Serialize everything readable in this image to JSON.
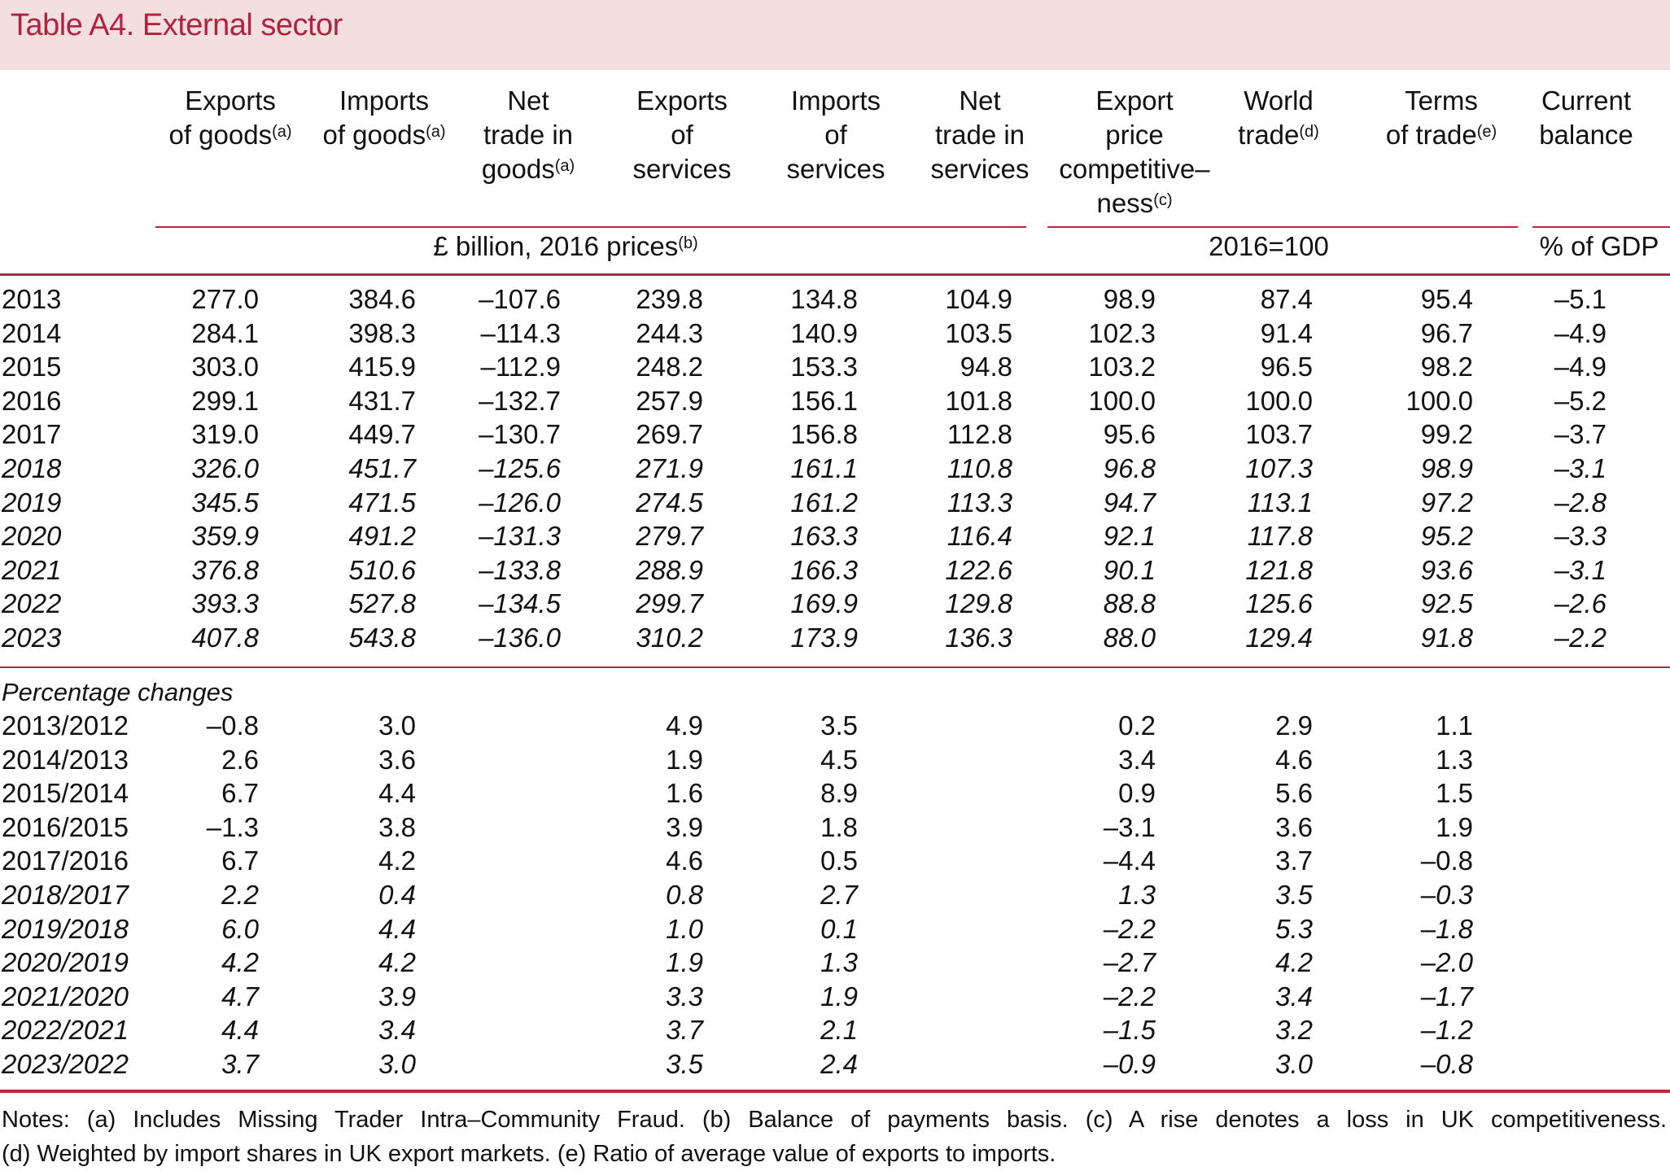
{
  "title": "Table A4. External sector",
  "colors": {
    "accent": "#b5283f",
    "title_bg": "#f3dfdf"
  },
  "columns": [
    {
      "lines": [
        "Exports",
        "of goods"
      ],
      "sup": "(a)"
    },
    {
      "lines": [
        "Imports",
        "of goods"
      ],
      "sup": "(a)"
    },
    {
      "lines": [
        "Net",
        "trade in",
        "goods"
      ],
      "sup": "(a)"
    },
    {
      "lines": [
        "Exports",
        "of",
        "services"
      ],
      "sup": ""
    },
    {
      "lines": [
        "Imports",
        "of",
        "services"
      ],
      "sup": ""
    },
    {
      "lines": [
        "Net",
        "trade in",
        "services"
      ],
      "sup": ""
    },
    {
      "lines": [
        "Export",
        "price",
        "competitive–",
        "ness"
      ],
      "sup": "(c)"
    },
    {
      "lines": [
        "World",
        "trade"
      ],
      "sup": "(d)"
    },
    {
      "lines": [
        "Terms",
        "of trade"
      ],
      "sup": "(e)"
    },
    {
      "lines": [
        "Current",
        "balance"
      ],
      "sup": ""
    }
  ],
  "units": [
    {
      "label": "£ billion, 2016 prices",
      "sup": "(b)"
    },
    {
      "label": "2016=100",
      "sup": ""
    },
    {
      "label": "% of GDP",
      "sup": ""
    }
  ],
  "levels": [
    {
      "year": "2013",
      "projection": false,
      "values": [
        "277.0",
        "384.6",
        "–107.6",
        "239.8",
        "134.8",
        "104.9",
        "98.9",
        "87.4",
        "95.4",
        "–5.1"
      ]
    },
    {
      "year": "2014",
      "projection": false,
      "values": [
        "284.1",
        "398.3",
        "–114.3",
        "244.3",
        "140.9",
        "103.5",
        "102.3",
        "91.4",
        "96.7",
        "–4.9"
      ]
    },
    {
      "year": "2015",
      "projection": false,
      "values": [
        "303.0",
        "415.9",
        "–112.9",
        "248.2",
        "153.3",
        "94.8",
        "103.2",
        "96.5",
        "98.2",
        "–4.9"
      ]
    },
    {
      "year": "2016",
      "projection": false,
      "values": [
        "299.1",
        "431.7",
        "–132.7",
        "257.9",
        "156.1",
        "101.8",
        "100.0",
        "100.0",
        "100.0",
        "–5.2"
      ]
    },
    {
      "year": "2017",
      "projection": false,
      "values": [
        "319.0",
        "449.7",
        "–130.7",
        "269.7",
        "156.8",
        "112.8",
        "95.6",
        "103.7",
        "99.2",
        "–3.7"
      ]
    },
    {
      "year": "2018",
      "projection": true,
      "values": [
        "326.0",
        "451.7",
        "–125.6",
        "271.9",
        "161.1",
        "110.8",
        "96.8",
        "107.3",
        "98.9",
        "–3.1"
      ]
    },
    {
      "year": "2019",
      "projection": true,
      "values": [
        "345.5",
        "471.5",
        "–126.0",
        "274.5",
        "161.2",
        "113.3",
        "94.7",
        "113.1",
        "97.2",
        "–2.8"
      ]
    },
    {
      "year": "2020",
      "projection": true,
      "values": [
        "359.9",
        "491.2",
        "–131.3",
        "279.7",
        "163.3",
        "116.4",
        "92.1",
        "117.8",
        "95.2",
        "–3.3"
      ]
    },
    {
      "year": "2021",
      "projection": true,
      "values": [
        "376.8",
        "510.6",
        "–133.8",
        "288.9",
        "166.3",
        "122.6",
        "90.1",
        "121.8",
        "93.6",
        "–3.1"
      ]
    },
    {
      "year": "2022",
      "projection": true,
      "values": [
        "393.3",
        "527.8",
        "–134.5",
        "299.7",
        "169.9",
        "129.8",
        "88.8",
        "125.6",
        "92.5",
        "–2.6"
      ]
    },
    {
      "year": "2023",
      "projection": true,
      "values": [
        "407.8",
        "543.8",
        "–136.0",
        "310.2",
        "173.9",
        "136.3",
        "88.0",
        "129.4",
        "91.8",
        "–2.2"
      ]
    }
  ],
  "pct_label": "Percentage changes",
  "pct": [
    {
      "year": "2013/2012",
      "projection": false,
      "values": [
        "–0.8",
        "3.0",
        "",
        "4.9",
        "3.5",
        "",
        "0.2",
        "2.9",
        "1.1",
        ""
      ]
    },
    {
      "year": "2014/2013",
      "projection": false,
      "values": [
        "2.6",
        "3.6",
        "",
        "1.9",
        "4.5",
        "",
        "3.4",
        "4.6",
        "1.3",
        ""
      ]
    },
    {
      "year": "2015/2014",
      "projection": false,
      "values": [
        "6.7",
        "4.4",
        "",
        "1.6",
        "8.9",
        "",
        "0.9",
        "5.6",
        "1.5",
        ""
      ]
    },
    {
      "year": "2016/2015",
      "projection": false,
      "values": [
        "–1.3",
        "3.8",
        "",
        "3.9",
        "1.8",
        "",
        "–3.1",
        "3.6",
        "1.9",
        ""
      ]
    },
    {
      "year": "2017/2016",
      "projection": false,
      "values": [
        "6.7",
        "4.2",
        "",
        "4.6",
        "0.5",
        "",
        "–4.4",
        "3.7",
        "–0.8",
        ""
      ]
    },
    {
      "year": "2018/2017",
      "projection": true,
      "values": [
        "2.2",
        "0.4",
        "",
        "0.8",
        "2.7",
        "",
        "1.3",
        "3.5",
        "–0.3",
        ""
      ]
    },
    {
      "year": "2019/2018",
      "projection": true,
      "values": [
        "6.0",
        "4.4",
        "",
        "1.0",
        "0.1",
        "",
        "–2.2",
        "5.3",
        "–1.8",
        ""
      ]
    },
    {
      "year": "2020/2019",
      "projection": true,
      "values": [
        "4.2",
        "4.2",
        "",
        "1.9",
        "1.3",
        "",
        "–2.7",
        "4.2",
        "–2.0",
        ""
      ]
    },
    {
      "year": "2021/2020",
      "projection": true,
      "values": [
        "4.7",
        "3.9",
        "",
        "3.3",
        "1.9",
        "",
        "–2.2",
        "3.4",
        "–1.7",
        ""
      ]
    },
    {
      "year": "2022/2021",
      "projection": true,
      "values": [
        "4.4",
        "3.4",
        "",
        "3.7",
        "2.1",
        "",
        "–1.5",
        "3.2",
        "–1.2",
        ""
      ]
    },
    {
      "year": "2023/2022",
      "projection": true,
      "values": [
        "3.7",
        "3.0",
        "",
        "3.5",
        "2.4",
        "",
        "–0.9",
        "3.0",
        "–0.8",
        ""
      ]
    }
  ],
  "notes": [
    "Notes: (a) Includes Missing Trader Intra–Community Fraud. (b) Balance of payments basis. (c) A rise denotes a loss in UK competitiveness.",
    "(d) Weighted by import shares in UK export markets. (e) Ratio of average value of exports to imports."
  ]
}
